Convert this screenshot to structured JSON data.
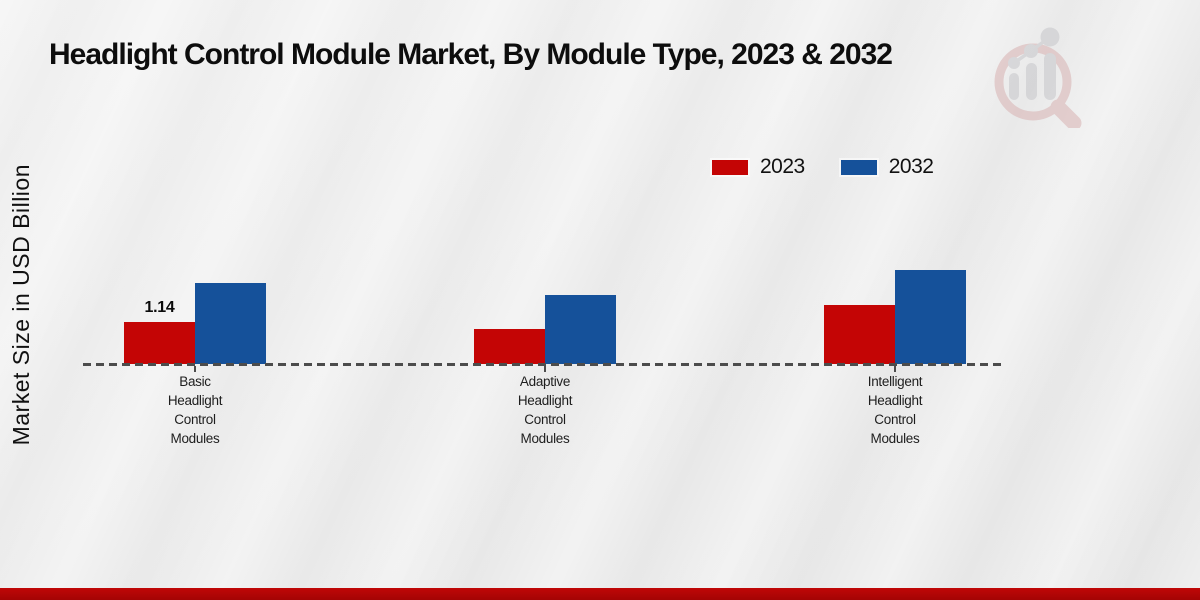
{
  "page": {
    "title": "Headlight Control Module Market, By Module Type, 2023 & 2032"
  },
  "branding": {
    "watermark_icon": "bar-chart-magnifier-logo",
    "accent_red": "#b30505"
  },
  "legend": {
    "position": "top-right",
    "items": [
      {
        "label": "2023",
        "color": "#c40505"
      },
      {
        "label": "2032",
        "color": "#15519a"
      }
    ]
  },
  "chart_data": {
    "type": "bar",
    "title": "Headlight Control Module Market, By Module Type, 2023 & 2032",
    "xlabel": "",
    "ylabel": "Market Size in USD Billion",
    "categories": [
      "Basic Headlight Control Modules",
      "Adaptive Headlight Control Modules",
      "Intelligent Headlight Control Modules"
    ],
    "category_lines": [
      [
        "Basic",
        "Headlight",
        "Control",
        "Modules"
      ],
      [
        "Adaptive",
        "Headlight",
        "Control",
        "Modules"
      ],
      [
        "Intelligent",
        "Headlight",
        "Control",
        "Modules"
      ]
    ],
    "series": [
      {
        "name": "2023",
        "color": "#c40505",
        "values": [
          1.14,
          0.95,
          1.6
        ]
      },
      {
        "name": "2032",
        "color": "#15519a",
        "values": [
          2.2,
          1.87,
          2.55
        ]
      }
    ],
    "value_labels": [
      {
        "series_index": 0,
        "category_index": 0,
        "text": "1.14"
      }
    ],
    "ylim": [
      0,
      2.8
    ],
    "y_axis_ticks_visible": false,
    "grid": false,
    "baseline_style": "dashed",
    "legend_position": "top-right"
  }
}
